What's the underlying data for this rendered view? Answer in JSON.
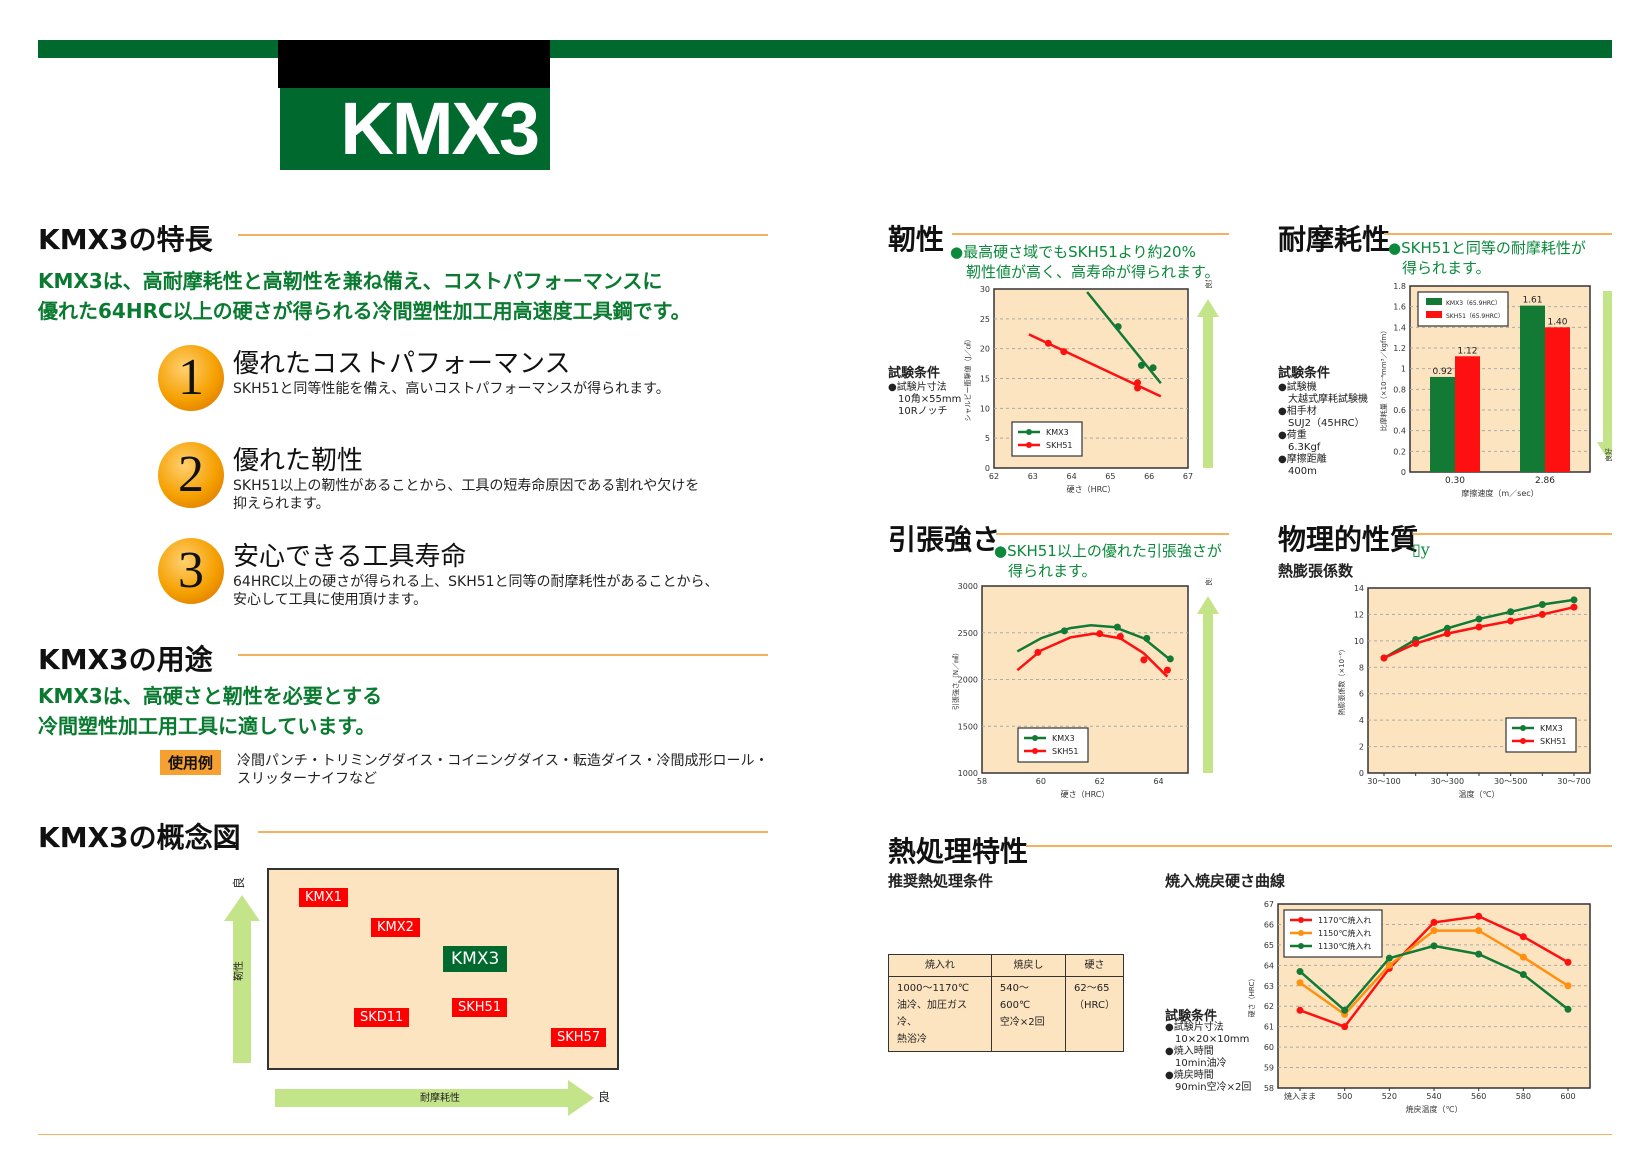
{
  "header": {
    "title": "KMX3"
  },
  "features": {
    "heading": "KMX3の特長",
    "lead": [
      "KMX3は、高耐摩耗性と高靭性を兼ね備え、コストパフォーマンスに",
      "優れた64HRC以上の硬さが得られる冷間塑性加工用高速度工具鋼です。"
    ],
    "items": [
      {
        "num": "1",
        "title": "優れたコストパフォーマンス",
        "desc": [
          "SKH51と同等性能を備え、高いコストパフォーマンスが得られます。"
        ]
      },
      {
        "num": "2",
        "title": "優れた靭性",
        "desc": [
          "SKH51以上の靭性があることから、工具の短寿命原因である割れや欠けを",
          "抑えられます。"
        ]
      },
      {
        "num": "3",
        "title": "安心できる工具寿命",
        "desc": [
          "64HRC以上の硬さが得られる上、SKH51と同等の耐摩耗性があることから、",
          "安心して工具に使用頂けます。"
        ]
      }
    ]
  },
  "usage": {
    "heading": "KMX3の用途",
    "lead": [
      "KMX3は、高硬さと靭性を必要とする",
      "冷間塑性加工用工具に適しています。"
    ],
    "tag": "使用例",
    "text": [
      "冷間パンチ・トリミングダイス・コイニングダイス・転造ダイス・冷間成形ロール・",
      "スリッターナイフなど"
    ]
  },
  "concept": {
    "heading": "KMX3の概念図",
    "y_label": "靭性",
    "x_label": "耐摩耗性",
    "good": "良",
    "labels": [
      "KMX1",
      "KMX2",
      "KMX3",
      "SKD11",
      "SKH51",
      "SKH57"
    ]
  },
  "toughness": {
    "heading": "靭性",
    "note": [
      "●最高硬さ域でもSKH51より約20%",
      "靭性値が高く、高寿命が得られます。"
    ],
    "cond_title": "試験条件",
    "cond": [
      "●試験片寸法",
      "10角×55mm",
      "10Rノッチ"
    ],
    "good": "良好"
  },
  "wear": {
    "heading": "耐摩耗性",
    "note": [
      "●SKH51と同等の耐摩耗性が",
      "得られます。"
    ],
    "cond_title": "試験条件",
    "cond": [
      "●試験機",
      "大越式摩耗試験機",
      "●相手材",
      "SUJ2（45HRC）",
      "●荷重",
      "6.3Kgf",
      "●摩擦距離",
      "400m"
    ],
    "good": "良好"
  },
  "tensile": {
    "heading": "引張強さ",
    "note": [
      "●SKH51以上の優れた引張強さが",
      "得られます。"
    ],
    "good": "良好"
  },
  "physical": {
    "heading": "物理的性質",
    "glyph": "▯y",
    "sub": "熱膨張係数"
  },
  "heat": {
    "heading": "熱処理特性",
    "sub1": "推奨熱処理条件",
    "sub2": "焼入焼戻硬さ曲線",
    "table": {
      "headers": [
        "焼入れ",
        "焼戻し",
        "硬さ"
      ],
      "cells": [
        [
          "1000～1170℃",
          "油冷、加圧ガス冷、",
          "熱浴冷"
        ],
        [
          "540～600℃",
          "空冷×2回"
        ],
        [
          "62～65",
          "（HRC）"
        ]
      ]
    },
    "cond_title": "試験条件",
    "cond": [
      "●試験片寸法",
      "10×20×10mm",
      "●焼入時間",
      "10min油冷",
      "●焼戻時間",
      "90min空冷×2回"
    ]
  },
  "colors": {
    "brand_green": "#006a2e",
    "kmx3": "#127a35",
    "skh51": "#ff1010",
    "s1150": "#ff9010",
    "plot_bg": "#fde4c0",
    "accent_line": "#f5b060",
    "arrow": "#c4e48a"
  },
  "chart_data": [
    {
      "id": "toughness",
      "type": "scatter",
      "xlabel": "硬さ（HRC）",
      "ylabel": "シャルピー衝撃値（J／㎠）",
      "xlim": [
        62,
        67
      ],
      "ylim": [
        0,
        30
      ],
      "xticks": [
        62,
        63,
        64,
        65,
        66,
        67
      ],
      "yticks": [
        0,
        5,
        10,
        15,
        20,
        25,
        30
      ],
      "grid": true,
      "legend": "bottom-left",
      "series": [
        {
          "name": "KMX3",
          "points": [
            [
              65.2,
              23.7
            ],
            [
              65.8,
              17.2
            ],
            [
              66.1,
              16.8
            ]
          ],
          "fit": [
            [
              64.4,
              29.5
            ],
            [
              66.3,
              14.2
            ]
          ]
        },
        {
          "name": "SKH51",
          "points": [
            [
              63.4,
              20.9
            ],
            [
              63.8,
              19.5
            ],
            [
              65.7,
              14.3
            ],
            [
              65.7,
              13.4
            ]
          ],
          "fit": [
            [
              62.9,
              22.4
            ],
            [
              66.3,
              12.0
            ]
          ]
        }
      ]
    },
    {
      "id": "wear",
      "type": "bar",
      "xlabel": "摩擦速度（m／sec）",
      "ylabel": "比摩耗量（×10⁻⁴mm³／kgfm）",
      "categories": [
        "0.30",
        "2.86"
      ],
      "ylim": [
        0,
        1.8
      ],
      "yticks": [
        0,
        0.2,
        0.4,
        0.6,
        0.8,
        1,
        1.2,
        1.4,
        1.6,
        1.8
      ],
      "grid": true,
      "legend": "top-left",
      "series": [
        {
          "name": "KMX3（65.9HRC）",
          "values": [
            0.92,
            1.61
          ],
          "labels": [
            "0.92",
            "1.61"
          ]
        },
        {
          "name": "SKH51（65.9HRC）",
          "values": [
            1.12,
            1.4
          ],
          "labels": [
            "1.12",
            "1.40"
          ]
        }
      ]
    },
    {
      "id": "tensile",
      "type": "scatter",
      "xlabel": "硬さ（HRC）",
      "ylabel": "引張強さ（N／㎟）",
      "xlim": [
        58,
        65
      ],
      "ylim": [
        1000,
        3000
      ],
      "xticks": [
        58,
        60,
        62,
        64
      ],
      "yticks": [
        1000,
        1500,
        2000,
        2500,
        3000
      ],
      "grid": true,
      "legend": "bottom-left",
      "series": [
        {
          "name": "KMX3",
          "points": [
            [
              60.8,
              2520
            ],
            [
              62.6,
              2560
            ],
            [
              63.6,
              2440
            ],
            [
              64.4,
              2220
            ]
          ],
          "fit": [
            [
              59.2,
              2300
            ],
            [
              60,
              2440
            ],
            [
              61,
              2550
            ],
            [
              61.7,
              2580
            ],
            [
              62.5,
              2560
            ],
            [
              63.5,
              2440
            ],
            [
              64.4,
              2210
            ]
          ]
        },
        {
          "name": "SKH51",
          "points": [
            [
              59.9,
              2290
            ],
            [
              62,
              2490
            ],
            [
              62.7,
              2460
            ],
            [
              63.5,
              2210
            ],
            [
              64.3,
              2100
            ]
          ],
          "fit": [
            [
              59.2,
              2100
            ],
            [
              60,
              2310
            ],
            [
              61,
              2450
            ],
            [
              61.8,
              2490
            ],
            [
              62.7,
              2440
            ],
            [
              63.5,
              2280
            ],
            [
              64.3,
              2030
            ]
          ]
        }
      ]
    },
    {
      "id": "thermal",
      "type": "line",
      "xlabel": "温度（℃）",
      "ylabel": "熱膨張係数（×10⁻⁶）",
      "categories": [
        "30～100",
        "",
        "30～300",
        "",
        "30～500",
        "",
        "30～700"
      ],
      "ylim": [
        0,
        14
      ],
      "yticks": [
        0,
        2,
        4,
        6,
        8,
        10,
        12,
        14
      ],
      "grid": true,
      "legend": "bottom-right",
      "series": [
        {
          "name": "KMX3",
          "values": [
            8.7,
            10.1,
            10.95,
            11.65,
            12.2,
            12.75,
            13.1
          ]
        },
        {
          "name": "SKH51",
          "values": [
            8.7,
            9.8,
            10.55,
            11.05,
            11.5,
            12.0,
            12.55
          ]
        }
      ]
    },
    {
      "id": "tempering",
      "type": "line",
      "xlabel": "焼戻温度（℃）",
      "ylabel": "硬さ（HRC）",
      "categories": [
        "焼入まま",
        "500",
        "520",
        "540",
        "560",
        "580",
        "600"
      ],
      "ylim": [
        58,
        67
      ],
      "yticks": [
        58,
        59,
        60,
        61,
        62,
        63,
        64,
        65,
        66,
        67
      ],
      "grid": true,
      "legend": "top-left",
      "series": [
        {
          "name": "1170℃焼入れ",
          "values": [
            61.8,
            61.0,
            63.85,
            66.1,
            66.4,
            65.4,
            64.15
          ]
        },
        {
          "name": "1150℃焼入れ",
          "values": [
            63.15,
            61.6,
            64.0,
            65.7,
            65.7,
            64.4,
            63.0
          ]
        },
        {
          "name": "1130℃焼入れ",
          "values": [
            63.7,
            61.8,
            64.35,
            64.95,
            64.55,
            63.55,
            61.85
          ]
        }
      ]
    }
  ]
}
